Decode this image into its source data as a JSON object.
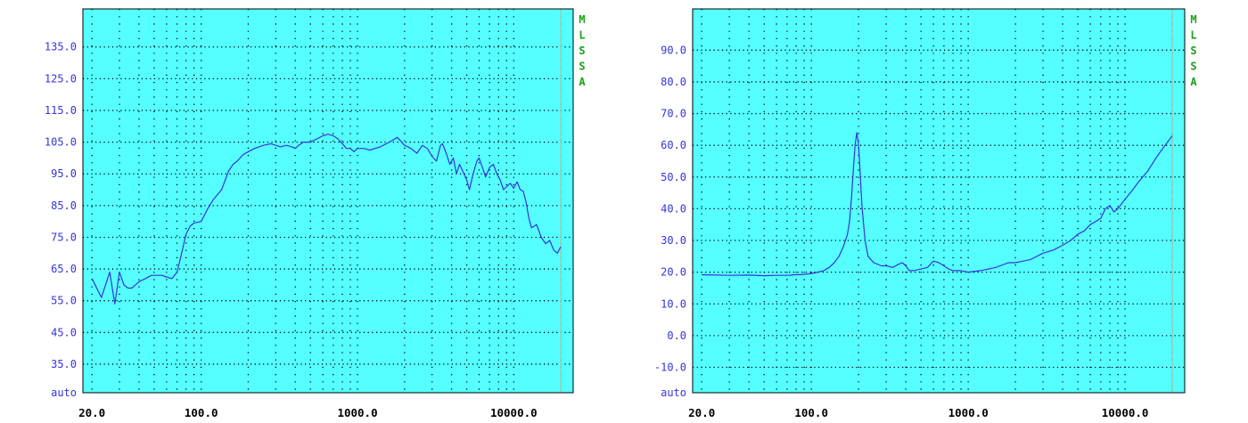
{
  "colors": {
    "plot_background": "#55ffff",
    "frame": "#000000",
    "grid": "#000000",
    "curve": "#3535d8",
    "y_tick_text": "#3535d8",
    "x_tick_text": "#000000",
    "side_label": "#15a015",
    "right_marker": "#8fd0b4"
  },
  "chart_data": [
    {
      "type": "line",
      "x_scale": "log",
      "x_range": [
        17.5,
        24000
      ],
      "y_range": [
        26,
        147
      ],
      "x_ticks": [
        "20.0",
        "100.0",
        "1000.0",
        "10000.0"
      ],
      "y_ticks": [
        "135.0",
        "125.0",
        "115.0",
        "105.0",
        "95.0",
        "85.0",
        "75.0",
        "65.0",
        "55.0",
        "45.0",
        "35.0"
      ],
      "y_bottom_label": "auto",
      "side_label": "MLSSA",
      "series": [
        {
          "x": [
            20,
            23,
            26,
            28,
            30,
            32,
            34,
            36,
            38,
            40,
            44,
            48,
            52,
            56,
            60,
            65,
            70,
            75,
            80,
            85,
            90,
            100,
            110,
            120,
            135,
            150,
            160,
            170,
            185,
            200,
            220,
            250,
            280,
            300,
            320,
            350,
            380,
            400,
            420,
            450,
            500,
            550,
            600,
            650,
            700,
            750,
            800,
            850,
            900,
            950,
            1000,
            1100,
            1200,
            1400,
            1600,
            1800,
            2000,
            2200,
            2400,
            2600,
            2800,
            3000,
            3200,
            3400,
            3500,
            3700,
            3900,
            4100,
            4300,
            4500,
            4700,
            5000,
            5200,
            5500,
            5800,
            6000,
            6300,
            6600,
            7000,
            7400,
            7800,
            8200,
            8600,
            9000,
            9500,
            10000,
            10500,
            11000,
            11500,
            12000,
            12500,
            13000,
            14000,
            15000,
            16000,
            17000,
            18000,
            19000,
            20000
          ],
          "y": [
            62,
            56,
            64,
            54,
            64,
            60,
            59,
            59,
            60,
            61,
            62,
            63,
            63,
            63,
            62.5,
            62,
            64,
            70,
            76,
            78.5,
            79.5,
            80,
            84,
            87,
            90,
            96,
            98,
            99,
            101,
            102,
            103,
            104,
            104.5,
            104,
            103.5,
            104,
            103.5,
            103,
            104,
            105,
            105,
            106,
            107,
            107.5,
            107,
            106,
            104.5,
            103,
            103,
            102,
            103,
            103,
            102.5,
            103.5,
            105,
            106.5,
            104,
            103,
            101.5,
            104,
            103,
            100.5,
            99,
            104,
            104.5,
            101.5,
            98,
            100,
            95,
            98,
            96,
            93,
            90,
            95,
            99,
            100,
            97,
            94,
            97,
            98,
            95,
            93,
            90,
            91,
            92,
            90.5,
            92.5,
            90,
            89.5,
            86,
            81,
            78,
            79,
            75,
            73,
            74,
            71,
            70,
            72
          ]
        }
      ]
    },
    {
      "type": "line",
      "x_scale": "log",
      "x_range": [
        17.5,
        24000
      ],
      "y_range": [
        -18,
        103
      ],
      "x_ticks": [
        "20.0",
        "100.0",
        "1000.0",
        "10000.0"
      ],
      "y_ticks": [
        "90.0",
        "80.0",
        "70.0",
        "60.0",
        "50.0",
        "40.0",
        "30.0",
        "20.0",
        "10.0",
        "0.0",
        "-10.0"
      ],
      "y_bottom_label": "auto",
      "side_label": "MLSSA",
      "series": [
        {
          "x": [
            20,
            30,
            40,
            50,
            60,
            70,
            80,
            90,
            100,
            110,
            120,
            130,
            140,
            150,
            160,
            170,
            175,
            180,
            185,
            190,
            195,
            200,
            210,
            220,
            230,
            250,
            280,
            300,
            330,
            360,
            380,
            400,
            420,
            450,
            500,
            550,
            600,
            650,
            700,
            750,
            800,
            900,
            1000,
            1200,
            1500,
            1800,
            2000,
            2500,
            3000,
            3500,
            4000,
            4500,
            5000,
            5500,
            6000,
            6500,
            7000,
            7500,
            8000,
            8500,
            9000,
            10000,
            11000,
            12000,
            14000,
            16000,
            18000,
            20000
          ],
          "y": [
            19.2,
            19,
            19.1,
            18.9,
            19,
            19,
            19.2,
            19.3,
            19.6,
            20,
            20.5,
            21.5,
            23,
            25,
            28,
            32,
            36,
            43,
            52,
            60,
            64,
            60,
            41,
            30,
            25,
            23,
            22,
            22,
            21.5,
            22.5,
            23,
            22,
            20.5,
            20.5,
            21,
            21.5,
            23.5,
            23,
            22,
            21,
            20.5,
            20.5,
            20,
            20.5,
            21.5,
            23,
            23,
            24,
            26,
            27,
            28.5,
            30,
            32,
            33,
            35,
            36,
            37,
            40,
            41,
            39,
            40,
            43,
            45.5,
            48,
            52,
            56.5,
            60,
            63
          ]
        }
      ]
    }
  ]
}
